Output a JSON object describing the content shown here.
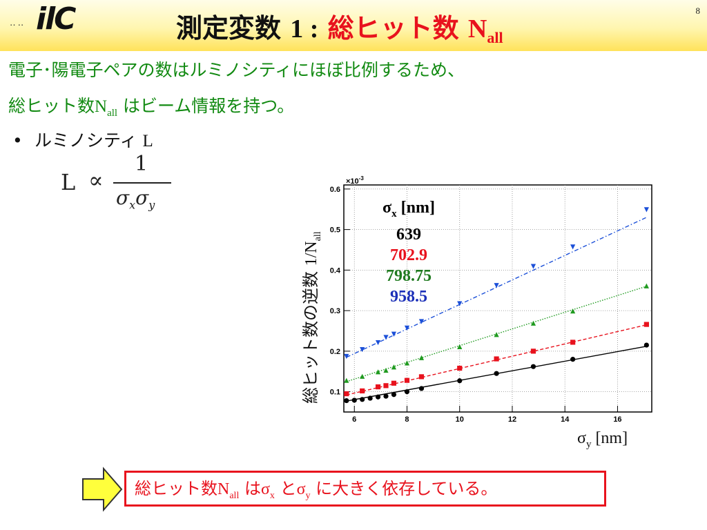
{
  "header": {
    "logo_dots": "‥‥",
    "logo_text": "ilC",
    "page_number": "8",
    "title_black": "測定変数",
    "title_num": "1 :",
    "title_red": "総ヒット数",
    "title_red_N": "N",
    "title_red_sub": "all"
  },
  "body": {
    "line1": "電子･陽電子ペアの数はルミノシティにほぼ比例するため、",
    "line2_pre": "総ヒット数",
    "line2_N": "N",
    "line2_sub": "all",
    "line2_post": " はビーム情報を持つ。",
    "bullet_dot": "•",
    "bullet_text": "ルミノシティ",
    "bullet_L": "L"
  },
  "formula": {
    "lhs": "L",
    "relation": "∝",
    "numerator": "1",
    "sigma": "σ",
    "sub_x": "x",
    "sub_y": "y"
  },
  "chart_axis_titles": {
    "ylabel_jp": "総ヒット数の逆数",
    "ylabel_math": "1/N",
    "ylabel_sub": "all",
    "xlabel": "σ",
    "xlabel_sub": "y",
    "xlabel_unit": " [nm]"
  },
  "legend": {
    "header_sigma": "σ",
    "header_sub": "x",
    "header_unit": " [nm]"
  },
  "conclusion": {
    "pre": "総ヒット数",
    "N": "N",
    "N_sub": "all",
    "mid1": " は",
    "sx": "σ",
    "sx_sub": "x",
    "mid2": " と",
    "sy": "σ",
    "sy_sub": "y",
    "post": " に大きく依存している。"
  },
  "colors": {
    "title_red": "#e8121d",
    "text_green": "#128a12",
    "arrow_fill": "#ffff3c",
    "series_black": "#000000",
    "series_red": "#e8121d",
    "series_green": "#1f9a1f",
    "series_blue": "#1b4fd8"
  },
  "chart_data": {
    "type": "scatter",
    "ylabel": "総ヒット数の逆数 1/Nall",
    "xlabel": "σy [nm]",
    "y_exponent_label": "×10",
    "y_exponent_power": "-3",
    "xlim": [
      5.6,
      17.3
    ],
    "ylim": [
      0.05,
      0.61
    ],
    "x_ticks": [
      6,
      8,
      10,
      12,
      14,
      16
    ],
    "y_ticks": [
      0.1,
      0.2,
      0.3,
      0.4,
      0.5,
      0.6
    ],
    "grid": true,
    "legend_title": "σx [nm]",
    "legend_position": "top-left",
    "series": [
      {
        "name": "639",
        "color": "#000000",
        "marker": "circle",
        "line": "solid",
        "x": [
          5.7,
          6.0,
          6.3,
          6.6,
          6.9,
          7.2,
          7.5,
          8.0,
          8.55,
          10.0,
          11.4,
          12.8,
          14.3,
          17.1
        ],
        "y": [
          0.078,
          0.079,
          0.081,
          0.084,
          0.087,
          0.089,
          0.093,
          0.1,
          0.108,
          0.127,
          0.145,
          0.162,
          0.18,
          0.215
        ],
        "fit": [
          [
            5.7,
            0.077
          ],
          [
            17.1,
            0.212
          ]
        ]
      },
      {
        "name": "702.9",
        "color": "#e8121d",
        "marker": "square",
        "line": "dashed",
        "x": [
          5.7,
          6.3,
          6.9,
          7.2,
          7.5,
          8.0,
          8.55,
          10.0,
          11.4,
          12.8,
          14.3,
          17.1
        ],
        "y": [
          0.095,
          0.102,
          0.112,
          0.115,
          0.121,
          0.128,
          0.137,
          0.158,
          0.181,
          0.2,
          0.222,
          0.266
        ],
        "fit": [
          [
            5.7,
            0.092
          ],
          [
            17.1,
            0.265
          ]
        ]
      },
      {
        "name": "798.75",
        "color": "#1f9a1f",
        "marker": "triangle-up",
        "line": "dotted",
        "x": [
          5.7,
          6.3,
          6.9,
          7.2,
          7.5,
          8.0,
          8.55,
          10.0,
          11.4,
          12.8,
          14.3,
          17.1
        ],
        "y": [
          0.127,
          0.137,
          0.148,
          0.152,
          0.16,
          0.17,
          0.183,
          0.21,
          0.24,
          0.268,
          0.298,
          0.36
        ],
        "fit": [
          [
            5.7,
            0.125
          ],
          [
            17.1,
            0.36
          ]
        ]
      },
      {
        "name": "958.5",
        "color": "#1b4fd8",
        "marker": "triangle-down",
        "line": "dashdot",
        "x": [
          5.7,
          6.3,
          6.9,
          7.2,
          7.5,
          8.0,
          8.55,
          10.0,
          11.4,
          12.8,
          14.3,
          17.1
        ],
        "y": [
          0.188,
          0.205,
          0.222,
          0.235,
          0.243,
          0.258,
          0.274,
          0.318,
          0.363,
          0.41,
          0.458,
          0.55
        ],
        "fit": [
          [
            5.7,
            0.185
          ],
          [
            17.1,
            0.53
          ]
        ]
      }
    ]
  }
}
